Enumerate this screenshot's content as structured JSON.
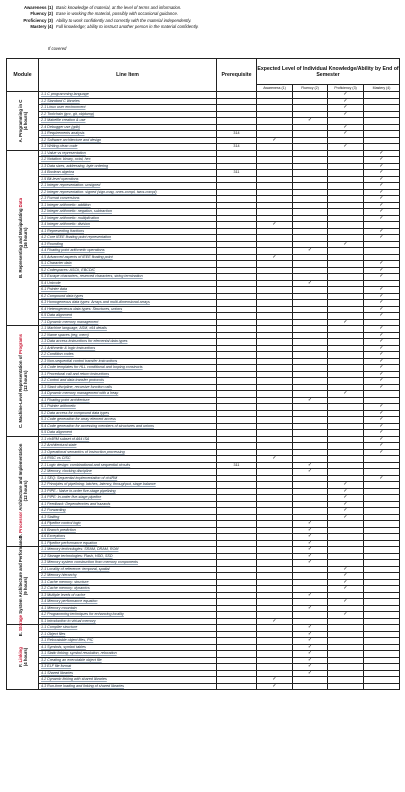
{
  "legend": [
    {
      "key": "Awareness (1)",
      "text": "Basic knowledge of material, at the level of terms and information."
    },
    {
      "key": "Fluency (2)",
      "text": "Ease in working the material, possibly with occasional guidance."
    },
    {
      "key": "Proficiency (3)",
      "text": "Ability to work confidently and correctly with the material independently."
    },
    {
      "key": "Mastery (4)",
      "text": "Full knowledge; ability to instruct another person in the material confidently."
    }
  ],
  "covered_note": "If covered",
  "headers": {
    "module": "Module",
    "line_item": "Line Item",
    "prerequisite": "Prerequisite",
    "expected": "Expected Level of Individual Knowledge/Ability by End of Semester",
    "levels": [
      "Awareness (1)",
      "Fluency (2)",
      "Proficiency (3)",
      "Mastery (4)"
    ]
  },
  "check_mark": "✓",
  "modules": [
    {
      "pre": "A. ",
      "name": "Programming in C",
      "hours": "(4 hours)",
      "rows": [
        {
          "item": "1.1 C programming language",
          "prereq": "",
          "level": 3
        },
        {
          "item": "1.2 Standard C libraries",
          "prereq": "",
          "level": 3
        },
        {
          "item": "2.1 Linux user environment",
          "prereq": "",
          "level": 3
        },
        {
          "item": "2.2 Toolchain (gcc, git, objdump)",
          "prereq": "",
          "level": 3
        },
        {
          "item": "2.3 Makefile creation & use",
          "prereq": "",
          "level": 2
        },
        {
          "item": "2.4 Debugger use (gdb)",
          "prereq": "",
          "level": 3
        },
        {
          "item": "3.1 Requirements analysis",
          "prereq": "314",
          "level": 3
        },
        {
          "item": "3.2 Software architecture and design",
          "prereq": "",
          "level": 1
        },
        {
          "item": "3.3 Writing clean code",
          "prereq": "314",
          "level": 3
        }
      ]
    },
    {
      "pre": "B. ",
      "name": "Representing and Manipulating ",
      "hl": "Data",
      "hours": "(16 hours)",
      "rows": [
        {
          "item": "1.1 Value vs representation",
          "prereq": "",
          "level": 4
        },
        {
          "item": "1.2 Notation: binary, octal, hex",
          "prereq": "",
          "level": 4
        },
        {
          "item": "1.3 Data sizes, addressing, byte ordering",
          "prereq": "",
          "level": 4
        },
        {
          "item": "1.4 Boolean algebra",
          "prereq": "311",
          "level": 4
        },
        {
          "item": "1.5 Bit-level operations",
          "prereq": "",
          "level": 4
        },
        {
          "item": "2.1 Integer representation: unsigned",
          "prereq": "",
          "level": 4
        },
        {
          "item": "2.2 Integer representation: signed (sign-mag, ones-compl, twos-compl)",
          "prereq": "",
          "level": 4
        },
        {
          "item": "2.3 Format conversions",
          "prereq": "",
          "level": 4
        },
        {
          "item": "3.1 Integer arithmetic: addition",
          "prereq": "",
          "level": 4
        },
        {
          "item": "3.2 Integer arithmetic: negation, subtraction",
          "prereq": "",
          "level": 4
        },
        {
          "item": "3.3 Integer arithmetic: multiplication",
          "prereq": "",
          "level": 4
        },
        {
          "item": "3.4 Integer arithmetic: division",
          "prereq": "",
          "level": 1
        },
        {
          "item": "4.1 Representing fractions",
          "prereq": "",
          "level": 4
        },
        {
          "item": "4.2 Core IEEE floating point representation",
          "prereq": "",
          "level": 4
        },
        {
          "item": "4.3 Rounding",
          "prereq": "",
          "level": 3
        },
        {
          "item": "4.4 Floating point arithmetic operations",
          "prereq": "",
          "level": 2
        },
        {
          "item": "4.5 Advanced aspects of IEEE floating point",
          "prereq": "",
          "level": 1
        },
        {
          "item": "5.1 Character data",
          "prereq": "",
          "level": 4
        },
        {
          "item": "5.2 Codespaces: ASCII, EBCDIC",
          "prereq": "",
          "level": 4
        },
        {
          "item": "5.3 Escape characters, reserved characters, string termination",
          "prereq": "",
          "level": 4
        },
        {
          "item": "5.4 Unicode",
          "prereq": "",
          "level": 2
        },
        {
          "item": "6.1 Pointer data",
          "prereq": "",
          "level": 4
        },
        {
          "item": "6.2 Compound data types",
          "prereq": "",
          "level": 4
        },
        {
          "item": "6.3 Homogeneous data types: Arrays and multi-dimensional arrays",
          "prereq": "",
          "level": 4
        },
        {
          "item": "6.4 Heterogeneous data types: Structures, unions",
          "prereq": "",
          "level": 4
        },
        {
          "item": "6.5 Data alignment",
          "prereq": "",
          "level": 4
        },
        {
          "item": "7.1 Dynamic memory management",
          "prereq": "",
          "level": 3
        }
      ]
    },
    {
      "pre": "C. Machine-Level Representation of ",
      "hl": "Programs",
      "hours": "(12 hours)",
      "rows": [
        {
          "item": "1.1 Machine language, ASM, x64 details",
          "prereq": "",
          "level": 4
        },
        {
          "item": "1.2 Name spaces (reg, mem)",
          "prereq": "",
          "level": 4
        },
        {
          "item": "1.3 Data access instructions for elemental data types",
          "prereq": "",
          "level": 4
        },
        {
          "item": "2.1 Arithmetic & logic instructions",
          "prereq": "",
          "level": 4
        },
        {
          "item": "2.2 Condition codes",
          "prereq": "",
          "level": 4
        },
        {
          "item": "2.3 Non-sequential control transfer instructions",
          "prereq": "",
          "level": 4
        },
        {
          "item": "2.4 Code templates for HLL conditional and looping constructs",
          "prereq": "",
          "level": 4
        },
        {
          "item": "3.1 Procedural call and return instructions",
          "prereq": "",
          "level": 4
        },
        {
          "item": "3.2 Control and data transfer protocols",
          "prereq": "",
          "level": 4
        },
        {
          "item": "3.3 Stack discipline, recursive function calls",
          "prereq": "",
          "level": 4
        },
        {
          "item": "3.4 Dynamic memory management with a heap",
          "prereq": "",
          "level": 3
        },
        {
          "item": "4.1 Floating point architecture",
          "prereq": "",
          "level": 2
        },
        {
          "item": "5.1 Pointer arithmetic",
          "prereq": "",
          "level": 4
        },
        {
          "item": "5.2 Data access for compound data types",
          "prereq": "",
          "level": 4
        },
        {
          "item": "5.3 Code generation for array element access",
          "prereq": "",
          "level": 4
        },
        {
          "item": "5.4 Code generation for accessing members of structures and unions",
          "prereq": "",
          "level": 4
        },
        {
          "item": "5.5 Data alignment",
          "prereq": "",
          "level": 4
        }
      ]
    },
    {
      "pre": "D. ",
      "hl": "Processor",
      "name2": " Architecture and Implementation",
      "hours": "(12 hours)",
      "rows": [
        {
          "item": "1.1 ch4RM subset of A64 ISA",
          "prereq": "",
          "level": 4
        },
        {
          "item": "1.2 Architectural state",
          "prereq": "",
          "level": 4
        },
        {
          "item": "1.3 Operational semantics of instruction processing",
          "prereq": "",
          "level": 4
        },
        {
          "item": "1.4 RISC vs CISC",
          "prereq": "",
          "level": 1
        },
        {
          "item": "2.1 Logic design: combinational and sequential circuits",
          "prereq": "311",
          "level": 2
        },
        {
          "item": "2.2 Memory, clocking discipline",
          "prereq": "",
          "level": 2
        },
        {
          "item": "3.1 SEQ: Sequential implementation of ch4RM",
          "prereq": "",
          "level": 4
        },
        {
          "item": "3.2 Principles of pipelining: latches, latency, throughput, stage balance",
          "prereq": "",
          "level": 3
        },
        {
          "item": "3.3 PIPE-: Naive in-order five-stage pipelining",
          "prereq": "",
          "level": 3
        },
        {
          "item": "3.4 PIPE: In-order five-stage pipeline",
          "prereq": "",
          "level": 3
        },
        {
          "item": "4.1 Feedback: Dependencies and hazards",
          "prereq": "",
          "level": 3
        },
        {
          "item": "4.2 Forwarding",
          "prereq": "",
          "level": 3
        },
        {
          "item": "4.3 Stalling",
          "prereq": "",
          "level": 3
        },
        {
          "item": "4.4 Pipeline control logic",
          "prereq": "",
          "level": 2
        },
        {
          "item": "4.5 Branch prediction",
          "prereq": "",
          "level": 2
        },
        {
          "item": "4.6 Exceptions",
          "prereq": "",
          "level": 2
        },
        {
          "item": "5.1 Pipeline performance equation",
          "prereq": "",
          "level": 2
        }
      ]
    },
    {
      "pre": "E. ",
      "hl": "Storage",
      "name2": " System Architecture and Performance",
      "hours": "(9 hours)",
      "rows": [
        {
          "item": "1.1 Memory technologies: SRAM, DRAM, ROM",
          "prereq": "",
          "level": 2
        },
        {
          "item": "1.2 Storage technologies: Flash, HDD, SSD",
          "prereq": "",
          "level": 2
        },
        {
          "item": "1.3 Memory system construction from memory components",
          "prereq": "",
          "level": 2
        },
        {
          "item": "2.1 Locality of reference: temporal, spatial",
          "prereq": "",
          "level": 3
        },
        {
          "item": "2.2 Memory hierarchy",
          "prereq": "",
          "level": 3
        },
        {
          "item": "3.1 Cache memory: structure",
          "prereq": "",
          "level": 3
        },
        {
          "item": "3.2 Cache memory: dynamics",
          "prereq": "",
          "level": 3
        },
        {
          "item": "3.3 Multiple levels of cache",
          "prereq": "",
          "level": 2
        },
        {
          "item": "3.4 Memory performance equation",
          "prereq": "",
          "level": 3
        },
        {
          "item": "4.1 Memory mountain",
          "prereq": "",
          "level": 2
        },
        {
          "item": "4.2 Programming techniques for enhancing locality",
          "prereq": "",
          "level": 3
        },
        {
          "item": "5.1 Introduction to virtual memory",
          "prereq": "",
          "level": 1
        }
      ]
    },
    {
      "pre": "F. ",
      "hl": "Linking",
      "hours": "(4 hours)",
      "rows": [
        {
          "item": "1.1 Compiler structure",
          "prereq": "",
          "level": 2
        },
        {
          "item": "2.1 Object files",
          "prereq": "",
          "level": 2
        },
        {
          "item": "3.1 Relocatable object files, PIC",
          "prereq": "",
          "level": 2
        },
        {
          "item": "4.1 Symbols, symbol tables",
          "prereq": "",
          "level": 2
        },
        {
          "item": "3.1 Static linking: symbol resolution, relocation",
          "prereq": "",
          "level": 2
        },
        {
          "item": "3.2 Creating an executable object file",
          "prereq": "",
          "level": 2
        },
        {
          "item": "3.3 ELF file format",
          "prereq": "",
          "level": 2
        },
        {
          "item": "4.1 Shared libraries",
          "prereq": "",
          "level": 2
        },
        {
          "item": "4.2 Dynamic linking with shared libraries",
          "prereq": "",
          "level": 1
        },
        {
          "item": "4.3 Run-time loading and linking of shared libraries",
          "prereq": "",
          "level": 1
        }
      ]
    }
  ]
}
